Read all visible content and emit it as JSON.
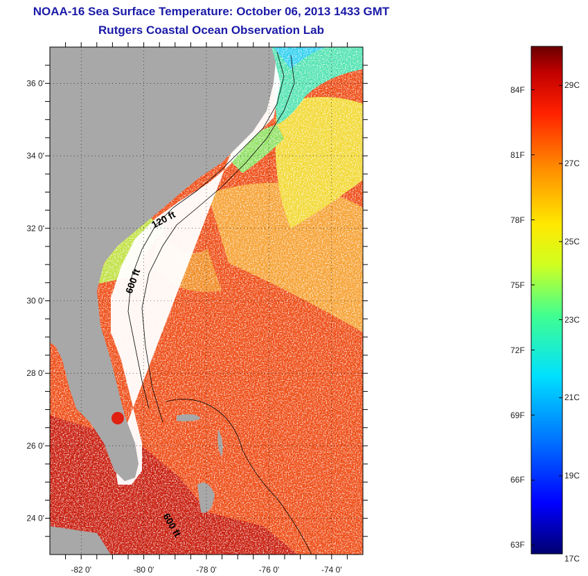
{
  "header": {
    "title": "NOAA-16 Sea Surface Temperature:  October 06, 2013 1433 GMT",
    "subtitle": "Rutgers Coastal Ocean Observation Lab"
  },
  "map": {
    "lon_range": [
      -83,
      -73
    ],
    "lat_range": [
      23,
      37
    ],
    "lat_ticks": [
      {
        "value": 36,
        "label": "36 0'"
      },
      {
        "value": 34,
        "label": "34 0'"
      },
      {
        "value": 32,
        "label": "32 0'"
      },
      {
        "value": 30,
        "label": "30 0'"
      },
      {
        "value": 28,
        "label": "28 0'"
      },
      {
        "value": 26,
        "label": "26 0'"
      },
      {
        "value": 24,
        "label": "24 0'"
      }
    ],
    "lon_ticks": [
      {
        "value": -82,
        "label": "-82 0'"
      },
      {
        "value": -80,
        "label": "-80 0'"
      },
      {
        "value": -78,
        "label": "-78 0'"
      },
      {
        "value": -76,
        "label": "-76 0'"
      },
      {
        "value": -74,
        "label": "-74 0'"
      }
    ],
    "contour_labels": {
      "c120": "120 ft",
      "c600a": "600 ft",
      "c600b": "600 ft"
    },
    "colors": {
      "land": "#a8a8a8",
      "cloud": "#ffffff",
      "contour": "#000000"
    }
  },
  "colorbar": {
    "min_c": 17,
    "max_c": 30,
    "fahrenheit_labels": [
      "84F",
      "81F",
      "78F",
      "75F",
      "72F",
      "69F",
      "66F",
      "63F"
    ],
    "celsius_labels": [
      "29C",
      "27C",
      "25C",
      "23C",
      "21C",
      "19C",
      "17C"
    ],
    "stops": [
      "#00006f",
      "#0000ff",
      "#0070ff",
      "#00e0ff",
      "#40ff90",
      "#d0ff20",
      "#ffe800",
      "#ff8c00",
      "#ff2000",
      "#c00000",
      "#6a0000"
    ]
  }
}
